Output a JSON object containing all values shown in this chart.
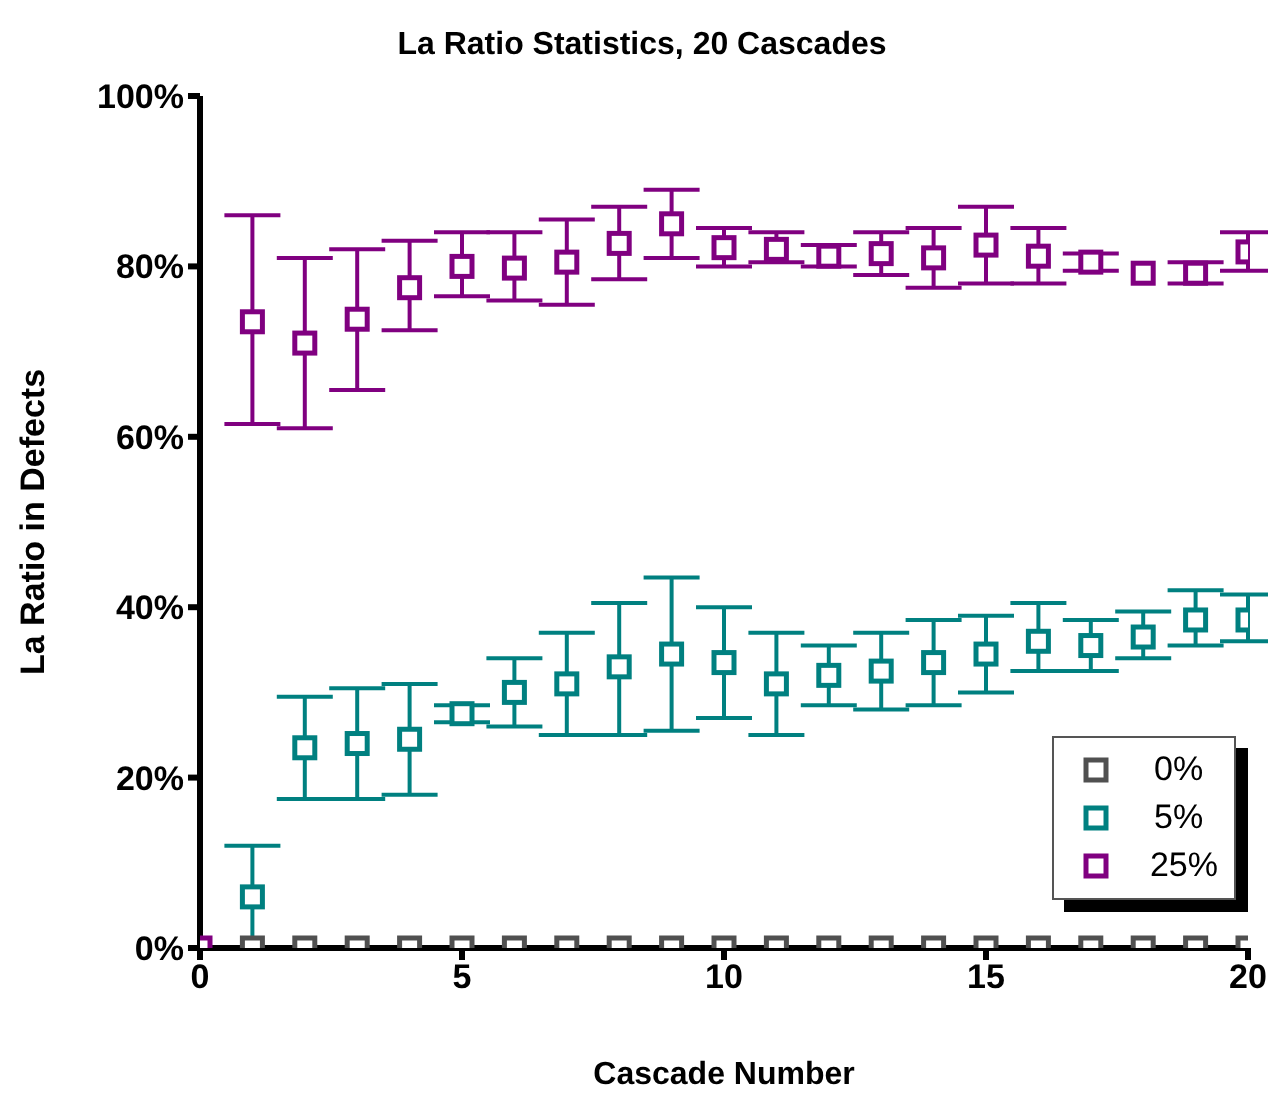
{
  "chart_data": {
    "type": "scatter",
    "title": "La Ratio Statistics, 20 Cascades",
    "xlabel": "Cascade Number",
    "ylabel": "La Ratio in Defects",
    "x": [
      0,
      1,
      2,
      3,
      4,
      5,
      6,
      7,
      8,
      9,
      10,
      11,
      12,
      13,
      14,
      15,
      16,
      17,
      18,
      19,
      20
    ],
    "series": [
      {
        "name": "0%",
        "color": "#505050",
        "values": [
          null,
          0,
          0,
          0,
          0,
          0,
          0,
          0,
          0,
          0,
          0,
          0,
          0,
          0,
          0,
          0,
          0,
          0,
          0,
          0,
          0
        ]
      },
      {
        "name": "5%",
        "color": "#008080",
        "values": [
          null,
          6,
          23.5,
          24,
          24.5,
          27.5,
          30,
          31,
          33,
          34.5,
          33.5,
          31,
          32,
          32.5,
          33.5,
          34.5,
          36,
          35.5,
          36.5,
          38.5,
          38.5
        ],
        "errors": [
          null,
          [
            0,
            12
          ],
          [
            17.5,
            29.5
          ],
          [
            17.5,
            30.5
          ],
          [
            18,
            31
          ],
          [
            26.5,
            28.5
          ],
          [
            26,
            34
          ],
          [
            25,
            37
          ],
          [
            25,
            40.5
          ],
          [
            25.5,
            43.5
          ],
          [
            27,
            40
          ],
          [
            25,
            37
          ],
          [
            28.5,
            35.5
          ],
          [
            28,
            37
          ],
          [
            28.5,
            38.5
          ],
          [
            30,
            39
          ],
          [
            32.5,
            40.5
          ],
          [
            32.5,
            38.5
          ],
          [
            34,
            39.5
          ],
          [
            35.5,
            42
          ],
          [
            36,
            41.5
          ]
        ]
      },
      {
        "name": "25%",
        "color": "#800080",
        "values": [
          0,
          73.5,
          71,
          73.8,
          77.5,
          80,
          79.8,
          80.5,
          82.7,
          85,
          82.2,
          82,
          81.2,
          81.5,
          81,
          82.5,
          81.2,
          80.5,
          79.2,
          79.2,
          81.7
        ],
        "errors": [
          null,
          [
            61.5,
            86
          ],
          [
            61,
            81
          ],
          [
            65.5,
            82
          ],
          [
            72.5,
            83
          ],
          [
            76.5,
            84
          ],
          [
            76,
            84
          ],
          [
            75.5,
            85.5
          ],
          [
            78.5,
            87
          ],
          [
            81,
            89
          ],
          [
            80,
            84.5
          ],
          [
            80.5,
            84
          ],
          [
            80,
            82.5
          ],
          [
            79,
            84
          ],
          [
            77.5,
            84.5
          ],
          [
            78,
            87
          ],
          [
            78,
            84.5
          ],
          [
            79.5,
            81.5
          ],
          null,
          [
            78,
            80.5
          ],
          [
            79.5,
            84
          ]
        ]
      }
    ],
    "xlim": [
      0,
      20
    ],
    "xticks": [
      0,
      5,
      10,
      15,
      20
    ],
    "ylim": [
      0,
      100
    ],
    "yticks": [
      {
        "value": 0,
        "label": "0%"
      },
      {
        "value": 20,
        "label": "20%"
      },
      {
        "value": 40,
        "label": "40%"
      },
      {
        "value": 60,
        "label": "60%"
      },
      {
        "value": 80,
        "label": "80%"
      },
      {
        "value": 100,
        "label": "100%"
      }
    ],
    "marker": "square",
    "legend": "bottom right",
    "grid": false
  }
}
